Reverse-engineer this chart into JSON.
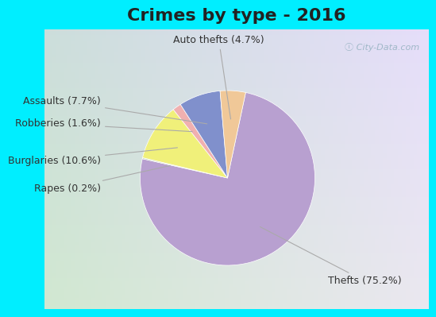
{
  "title": "Crimes by type - 2016",
  "labels": [
    "Thefts",
    "Burglaries",
    "Assaults",
    "Auto thefts",
    "Robberies",
    "Rapes"
  ],
  "values": [
    75.2,
    10.6,
    7.7,
    4.7,
    1.6,
    0.2
  ],
  "colors": [
    "#b8a0d0",
    "#f0f07a",
    "#8090cc",
    "#f0c898",
    "#f0b0b0",
    "#b8d0b0"
  ],
  "label_texts": [
    "Thefts (75.2%)",
    "Burglaries (10.6%)",
    "Assaults (7.7%)",
    "Auto thefts (4.7%)",
    "Robberies (1.6%)",
    "Rapes (0.2%)"
  ],
  "border_color": "#00eeff",
  "title_fontsize": 16,
  "label_fontsize": 9,
  "startangle": 90
}
